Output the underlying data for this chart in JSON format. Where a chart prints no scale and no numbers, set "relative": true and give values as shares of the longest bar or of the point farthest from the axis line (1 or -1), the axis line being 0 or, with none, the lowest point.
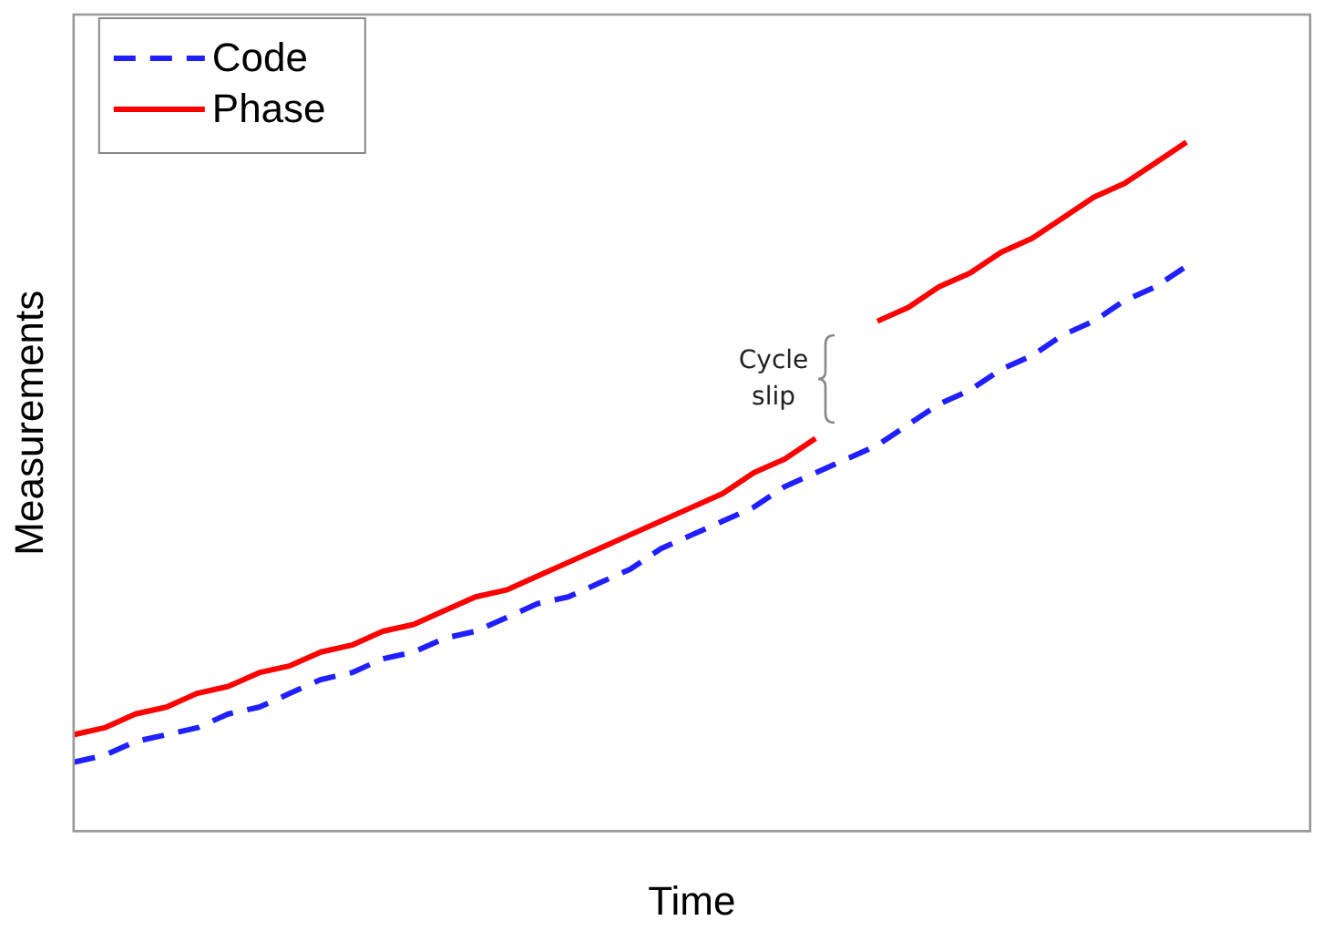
{
  "chart_data": {
    "type": "line",
    "xlabel": "Time",
    "ylabel": "Measurements",
    "relative": true,
    "legend": "top left",
    "marker": "none",
    "categories": [
      null,
      null,
      null,
      null,
      null,
      null,
      null,
      null,
      null,
      null,
      null,
      null,
      null,
      null,
      null,
      null,
      null,
      null,
      null,
      null,
      null,
      null,
      null,
      null,
      null,
      null,
      null,
      null,
      null,
      null,
      null,
      null,
      null,
      null,
      null,
      null,
      null,
      null,
      null,
      null,
      null
    ],
    "series": [
      {
        "name": "Code",
        "color": "#1f1fff",
        "line_style": "dashed",
        "values": [
          0.1,
          0.11,
          0.13,
          0.14,
          0.15,
          0.17,
          0.18,
          0.2,
          0.22,
          0.23,
          0.25,
          0.26,
          0.28,
          0.29,
          0.31,
          0.33,
          0.34,
          0.36,
          0.38,
          0.41,
          0.43,
          0.45,
          0.47,
          0.5,
          0.52,
          0.54,
          0.56,
          0.59,
          0.62,
          0.64,
          0.67,
          0.69,
          0.72,
          0.74,
          0.77,
          0.79,
          0.82,
          null,
          null,
          null,
          null
        ]
      },
      {
        "name": "Phase",
        "color": "#ff0000",
        "line_style": "solid",
        "values": [
          0.14,
          0.15,
          0.17,
          0.18,
          0.2,
          0.21,
          0.23,
          0.24,
          0.26,
          0.27,
          0.29,
          0.3,
          0.32,
          0.34,
          0.35,
          0.37,
          0.39,
          0.41,
          0.43,
          0.45,
          0.47,
          0.49,
          0.52,
          0.54,
          0.57,
          null,
          0.74,
          0.76,
          0.79,
          0.81,
          0.84,
          0.86,
          0.89,
          0.92,
          0.94,
          0.97,
          1,
          null,
          null,
          null,
          null
        ]
      }
    ],
    "annotations": [
      "Cycle slip"
    ]
  }
}
